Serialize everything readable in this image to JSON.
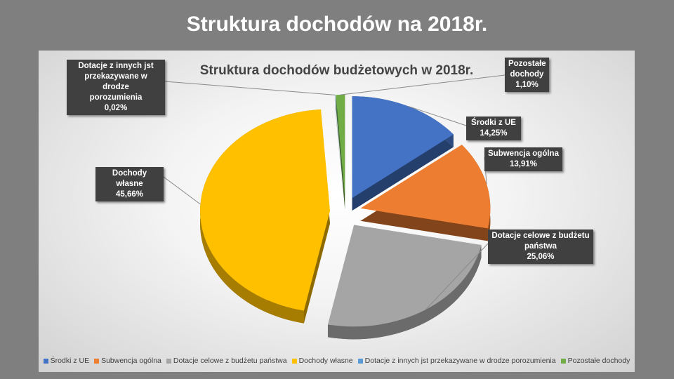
{
  "slide": {
    "title": "Struktura dochodów na 2018r."
  },
  "chart_data": {
    "type": "pie",
    "title": "Struktura dochodów budżetowych w 2018r.",
    "legend_position": "bottom",
    "slices": [
      {
        "name": "Środki z UE",
        "value": 14.25,
        "label": "14,25%",
        "color": "#4472C4",
        "callout_lines": [
          "Środki z UE"
        ]
      },
      {
        "name": "Subwencja ogólna",
        "value": 13.91,
        "label": "13,91%",
        "color": "#ED7D31",
        "callout_lines": [
          "Subwencja ogólna"
        ]
      },
      {
        "name": "Dotacje celowe z budżetu państwa",
        "value": 25.06,
        "label": "25,06%",
        "color": "#A5A5A5",
        "callout_lines": [
          "Dotacje celowe z budżetu",
          "państwa"
        ]
      },
      {
        "name": "Dochody własne",
        "value": 45.66,
        "label": "45,66%",
        "color": "#FFC000",
        "callout_lines": [
          "Dochody własne"
        ]
      },
      {
        "name": "Dotacje z innych jst przekazywane w drodze porozumienia",
        "value": 0.02,
        "label": "0,02%",
        "color": "#5B9BD5",
        "callout_lines": [
          "Dotacje z innych jst",
          "przekazywane w drodze",
          "porozumienia"
        ]
      },
      {
        "name": "Pozostałe dochody",
        "value": 1.1,
        "label": "1,10%",
        "color": "#70AD47",
        "callout_lines": [
          "Pozostałe",
          "dochody"
        ]
      }
    ]
  }
}
